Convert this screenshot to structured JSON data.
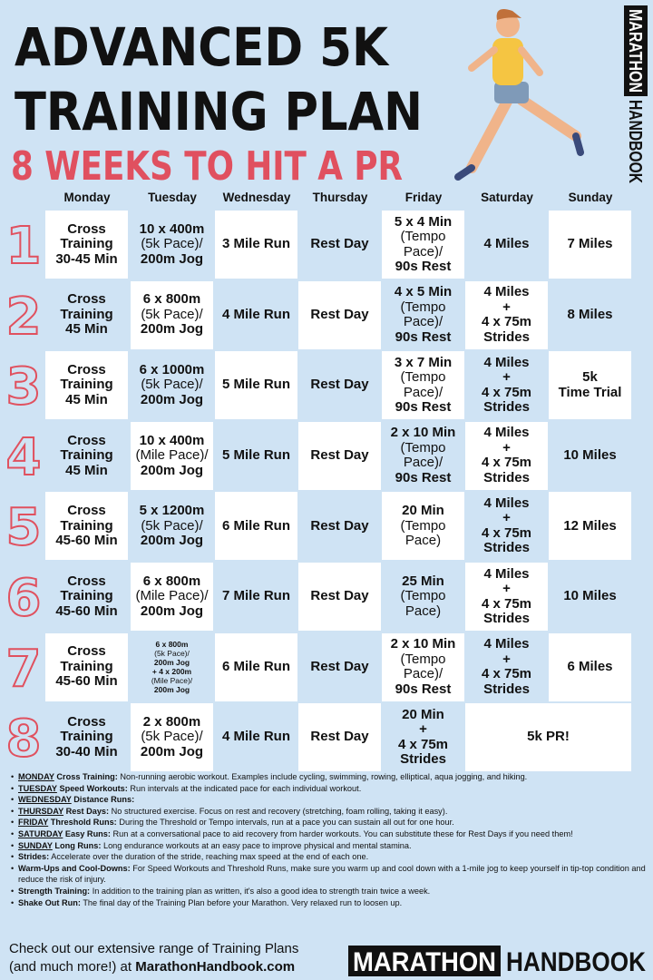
{
  "header": {
    "title_line1": "ADVANCED 5K",
    "title_line2": "TRAINING PLAN",
    "subtitle": "8 WEEKS TO HIT A PR"
  },
  "side_logo": {
    "part1": "MARATHON",
    "part2": "HANDBOOK"
  },
  "days": [
    "Monday",
    "Tuesday",
    "Wednesday",
    "Thursday",
    "Friday",
    "Saturday",
    "Sunday"
  ],
  "weeks": [
    {
      "number": "1",
      "cells": [
        [
          "Cross",
          "Training",
          "30-45 Min"
        ],
        [
          "10 x 400m",
          "(5k Pace)/",
          "200m Jog"
        ],
        [
          "3 Mile Run"
        ],
        [
          "Rest Day"
        ],
        [
          "5 x 4 Min",
          "(Tempo",
          "Pace)/",
          "90s Rest"
        ],
        [
          "4 Miles"
        ],
        [
          "7 Miles"
        ]
      ]
    },
    {
      "number": "2",
      "cells": [
        [
          "Cross",
          "Training",
          "45 Min"
        ],
        [
          "6 x 800m",
          "(5k Pace)/",
          "200m Jog"
        ],
        [
          "4 Mile Run"
        ],
        [
          "Rest Day"
        ],
        [
          "4 x 5 Min",
          "(Tempo",
          "Pace)/",
          "90s Rest"
        ],
        [
          "4 Miles",
          "+",
          "4 x 75m",
          "Strides"
        ],
        [
          "8 Miles"
        ]
      ]
    },
    {
      "number": "3",
      "cells": [
        [
          "Cross",
          "Training",
          "45 Min"
        ],
        [
          "6 x 1000m",
          "(5k Pace)/",
          "200m Jog"
        ],
        [
          "5 Mile Run"
        ],
        [
          "Rest Day"
        ],
        [
          "3 x 7 Min",
          "(Tempo",
          "Pace)/",
          "90s Rest"
        ],
        [
          "4 Miles",
          "+",
          "4 x 75m",
          "Strides"
        ],
        [
          "5k",
          "Time Trial"
        ]
      ]
    },
    {
      "number": "4",
      "cells": [
        [
          "Cross",
          "Training",
          "45 Min"
        ],
        [
          "10 x 400m",
          "(Mile Pace)/",
          "200m Jog"
        ],
        [
          "5 Mile Run"
        ],
        [
          "Rest Day"
        ],
        [
          "2 x 10 Min",
          "(Tempo",
          "Pace)/",
          "90s Rest"
        ],
        [
          "4 Miles",
          "+",
          "4 x 75m",
          "Strides"
        ],
        [
          "10 Miles"
        ]
      ]
    },
    {
      "number": "5",
      "cells": [
        [
          "Cross",
          "Training",
          "45-60 Min"
        ],
        [
          "5 x 1200m",
          "(5k Pace)/",
          "200m Jog"
        ],
        [
          "6 Mile Run"
        ],
        [
          "Rest Day"
        ],
        [
          "20 Min",
          "(Tempo",
          "Pace)"
        ],
        [
          "4 Miles",
          "+",
          "4 x 75m",
          "Strides"
        ],
        [
          "12 Miles"
        ]
      ]
    },
    {
      "number": "6",
      "cells": [
        [
          "Cross",
          "Training",
          "45-60 Min"
        ],
        [
          "6 x 800m",
          "(Mile Pace)/",
          "200m Jog"
        ],
        [
          "7 Mile Run"
        ],
        [
          "Rest Day"
        ],
        [
          "25 Min",
          "(Tempo",
          "Pace)"
        ],
        [
          "4 Miles",
          "+",
          "4 x 75m",
          "Strides"
        ],
        [
          "10 Miles"
        ]
      ]
    },
    {
      "number": "7",
      "cells": [
        [
          "Cross",
          "Training",
          "45-60 Min"
        ],
        [
          "6 x 800m",
          "(5k Pace)/",
          "200m Jog",
          "+ 4 x 200m",
          "(Mile Pace)/",
          "200m Jog"
        ],
        [
          "6 Mile Run"
        ],
        [
          "Rest Day"
        ],
        [
          "2 x 10 Min",
          "(Tempo",
          "Pace)/",
          "90s Rest"
        ],
        [
          "4 Miles",
          "+",
          "4 x 75m",
          "Strides"
        ],
        [
          "6 Miles"
        ]
      ]
    },
    {
      "number": "8",
      "cells": [
        [
          "Cross",
          "Training",
          "30-40 Min"
        ],
        [
          "2 x 800m",
          "(5k Pace)/",
          "200m Jog"
        ],
        [
          "4 Mile Run"
        ],
        [
          "Rest Day"
        ],
        [
          "20 Min",
          "+",
          "4 x 75m",
          "Strides"
        ],
        [
          "5k PR!"
        ]
      ]
    }
  ],
  "notes": [
    {
      "day": "MONDAY",
      "label": "Cross Training:",
      "text": "Non-running aerobic workout. Examples include cycling, swimming, rowing, elliptical, aqua jogging, and hiking."
    },
    {
      "day": "TUESDAY",
      "label": "Speed Workouts:",
      "text": "Run intervals at the indicated pace for each individual workout."
    },
    {
      "day": "WEDNESDAY",
      "label": "Distance Runs:"
    },
    {
      "day": "THURSDAY",
      "label": "Rest Days:",
      "text": "No structured exercise. Focus on rest and recovery (stretching, foam rolling, taking it easy)."
    },
    {
      "day": "FRIDAY",
      "label": "Threshold Runs:",
      "text": "During the Threshold or Tempo intervals, run at a pace you can sustain all out for one hour."
    },
    {
      "day": "SATURDAY",
      "label": "Easy Runs:",
      "text": "Run at a conversational pace to aid recovery from harder workouts. You can substitute these for Rest Days if you need them!"
    },
    {
      "day": "SUNDAY",
      "label": "Long Runs:",
      "text": "Long endurance workouts at an easy pace to improve physical and mental stamina."
    },
    {
      "label": "Strides:",
      "text": "Accelerate over the duration of the stride, reaching max speed at the end of each one."
    },
    {
      "label": "Warm-Ups and Cool-Downs:",
      "text": "For Speed Workouts and Threshold Runs, make sure you warm up and cool down with a 1-mile jog to keep yourself in tip-top condition and reduce the risk of injury."
    },
    {
      "label": "Strength Training:",
      "text": "In addition to the training plan as written, it's also a good idea to strength train twice a week."
    },
    {
      "label": "Shake Out Run:",
      "text": "The final day of the Training Plan before your Marathon. Very relaxed run to loosen up."
    }
  ],
  "footer": {
    "line1": "Check out our extensive range of Training Plans",
    "line2": "(and much more!) at",
    "link": "MarathonHandbook.com"
  },
  "footer_logo": {
    "part1": "MARATHON",
    "part2": "HANDBOOK"
  }
}
